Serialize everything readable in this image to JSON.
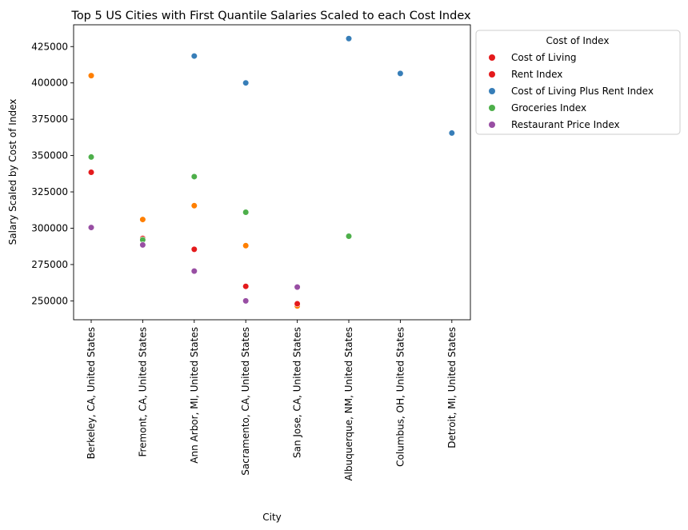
{
  "chart_data": {
    "type": "scatter",
    "title": "Top 5 US Cities with First Quantile Salaries Scaled to each Cost Index",
    "xlabel": "City",
    "ylabel": "Salary Scaled by Cost of Index",
    "categories": [
      "Berkeley, CA, United States",
      "Fremont, CA, United States",
      "Ann Arbor, MI, United States",
      "Sacramento, CA, United States",
      "San Jose, CA, United States",
      "Albuquerque, NM, United States",
      "Columbus, OH, United States",
      "Detroit, MI, United States"
    ],
    "ylim": [
      237000,
      440000
    ],
    "yticks": [
      250000,
      275000,
      300000,
      325000,
      350000,
      375000,
      400000,
      425000
    ],
    "grid": false,
    "legend": {
      "title": "Cost of Index",
      "placement": "outside-top-right"
    },
    "series": [
      {
        "name": "Cost of Living",
        "color": "#e41a1c",
        "legend_color": "#e41a1c",
        "points": [
          {
            "x": "Berkeley, CA, United States",
            "y": 405000,
            "color": "#ff7f00"
          },
          {
            "x": "Fremont, CA, United States",
            "y": 306000,
            "color": "#ff7f00"
          },
          {
            "x": "Ann Arbor, MI, United States",
            "y": 315500,
            "color": "#ff7f00"
          },
          {
            "x": "Sacramento, CA, United States",
            "y": 288000,
            "color": "#ff7f00"
          },
          {
            "x": "San Jose, CA, United States",
            "y": 246500,
            "color": "#ff7f00"
          }
        ]
      },
      {
        "name": "Rent Index",
        "color": "#e41a1c",
        "legend_color": "#e41a1c",
        "points": [
          {
            "x": "Berkeley, CA, United States",
            "y": 338500
          },
          {
            "x": "Fremont, CA, United States",
            "y": 293000
          },
          {
            "x": "Ann Arbor, MI, United States",
            "y": 285500
          },
          {
            "x": "Sacramento, CA, United States",
            "y": 260000
          },
          {
            "x": "San Jose, CA, United States",
            "y": 248000
          }
        ]
      },
      {
        "name": "Cost of Living Plus Rent Index",
        "color": "#377eb8",
        "legend_color": "#377eb8",
        "points": [
          {
            "x": "Ann Arbor, MI, United States",
            "y": 418500
          },
          {
            "x": "Sacramento, CA, United States",
            "y": 400000
          },
          {
            "x": "Albuquerque, NM, United States",
            "y": 430500
          },
          {
            "x": "Columbus, OH, United States",
            "y": 406500
          },
          {
            "x": "Detroit, MI, United States",
            "y": 365500
          }
        ]
      },
      {
        "name": "Groceries Index",
        "color": "#4daf4a",
        "legend_color": "#4daf4a",
        "points": [
          {
            "x": "Berkeley, CA, United States",
            "y": 349000
          },
          {
            "x": "Fremont, CA, United States",
            "y": 292000
          },
          {
            "x": "Ann Arbor, MI, United States",
            "y": 335500
          },
          {
            "x": "Sacramento, CA, United States",
            "y": 311000
          },
          {
            "x": "Albuquerque, NM, United States",
            "y": 294500
          }
        ]
      },
      {
        "name": "Restaurant Price Index",
        "color": "#984ea3",
        "legend_color": "#984ea3",
        "points": [
          {
            "x": "Berkeley, CA, United States",
            "y": 300500
          },
          {
            "x": "Fremont, CA, United States",
            "y": 288500
          },
          {
            "x": "Ann Arbor, MI, United States",
            "y": 270500
          },
          {
            "x": "Sacramento, CA, United States",
            "y": 250000
          },
          {
            "x": "San Jose, CA, United States",
            "y": 259500
          }
        ]
      }
    ]
  }
}
